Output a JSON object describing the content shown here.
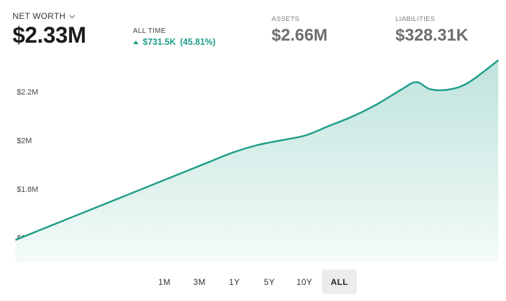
{
  "header": {
    "net_worth_label": "NET WORTH",
    "net_worth_value": "$2.33M",
    "all_time_label": "ALL TIME",
    "all_time_change": "$731.5K",
    "all_time_percent": "(45.81%)",
    "assets_label": "ASSETS",
    "assets_value": "$2.66M",
    "liabilities_label": "LIABILITIES",
    "liabilities_value": "$328.31K"
  },
  "icons": {
    "dropdown": "chevron-down-icon",
    "trend": "triangle-up-icon"
  },
  "colors": {
    "accent": "#1e9e8a",
    "area_top": "#bfe3dc",
    "area_bottom": "#f4fbf9",
    "active_bg": "#ececec"
  },
  "ranges": [
    {
      "label": "1M",
      "active": false
    },
    {
      "label": "3M",
      "active": false
    },
    {
      "label": "1Y",
      "active": false
    },
    {
      "label": "5Y",
      "active": false
    },
    {
      "label": "10Y",
      "active": false
    },
    {
      "label": "ALL",
      "active": true
    }
  ],
  "chart_data": {
    "type": "area",
    "title": "",
    "xlabel": "",
    "ylabel": "",
    "ylim": [
      1.5,
      2.33
    ],
    "yticks": [
      1.6,
      1.8,
      2.0,
      2.2
    ],
    "ytick_labels": [
      "$1.6M",
      "$1.8M",
      "$2M",
      "$2.2M"
    ],
    "grid": false,
    "x": [
      0,
      0.05,
      0.1,
      0.15,
      0.2,
      0.25,
      0.3,
      0.35,
      0.4,
      0.45,
      0.5,
      0.55,
      0.6,
      0.65,
      0.7,
      0.75,
      0.8,
      0.83,
      0.86,
      0.9,
      0.94,
      1.0
    ],
    "series": [
      {
        "values": [
          1.59,
          1.63,
          1.67,
          1.71,
          1.75,
          1.79,
          1.83,
          1.87,
          1.91,
          1.95,
          1.98,
          2.0,
          2.02,
          2.06,
          2.1,
          2.15,
          2.21,
          2.24,
          2.21,
          2.21,
          2.24,
          2.33
        ]
      }
    ]
  }
}
